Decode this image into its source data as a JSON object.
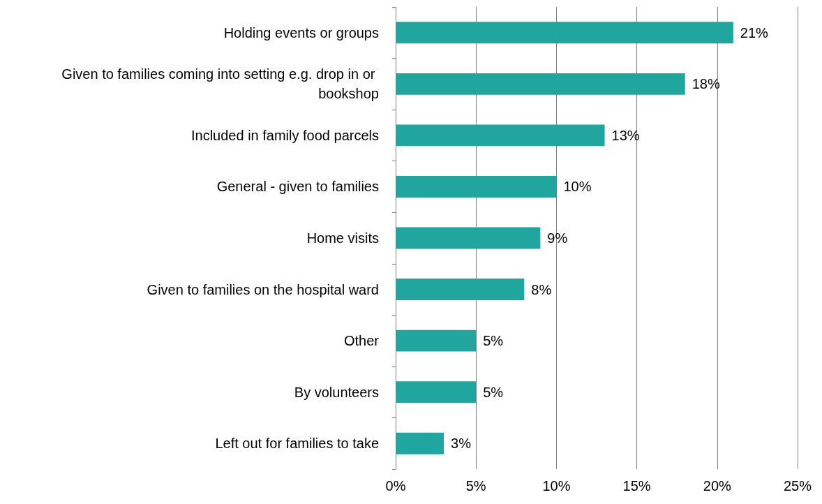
{
  "chart_data": {
    "type": "bar",
    "orientation": "horizontal",
    "categories": [
      "Holding events or groups",
      "Given to families coming into setting e.g. drop in or bookshop",
      "Included in family food parcels",
      "General - given to families",
      "Home visits",
      "Given to families on the hospital ward",
      "Other",
      "By volunteers",
      "Left out for families to take"
    ],
    "values": [
      21,
      18,
      13,
      10,
      9,
      8,
      5,
      5,
      3
    ],
    "value_labels": [
      "21%",
      "18%",
      "13%",
      "10%",
      "9%",
      "8%",
      "5%",
      "5%",
      "3%"
    ],
    "color": "#20a69f",
    "xlim": [
      0,
      25
    ],
    "xticks": [
      {
        "value": 0,
        "label": "0%"
      },
      {
        "value": 5,
        "label": "5%"
      },
      {
        "value": 10,
        "label": "10%"
      },
      {
        "value": 15,
        "label": "15%"
      },
      {
        "value": 20,
        "label": "20%"
      },
      {
        "value": 25,
        "label": "25%"
      }
    ],
    "grid": "x"
  }
}
